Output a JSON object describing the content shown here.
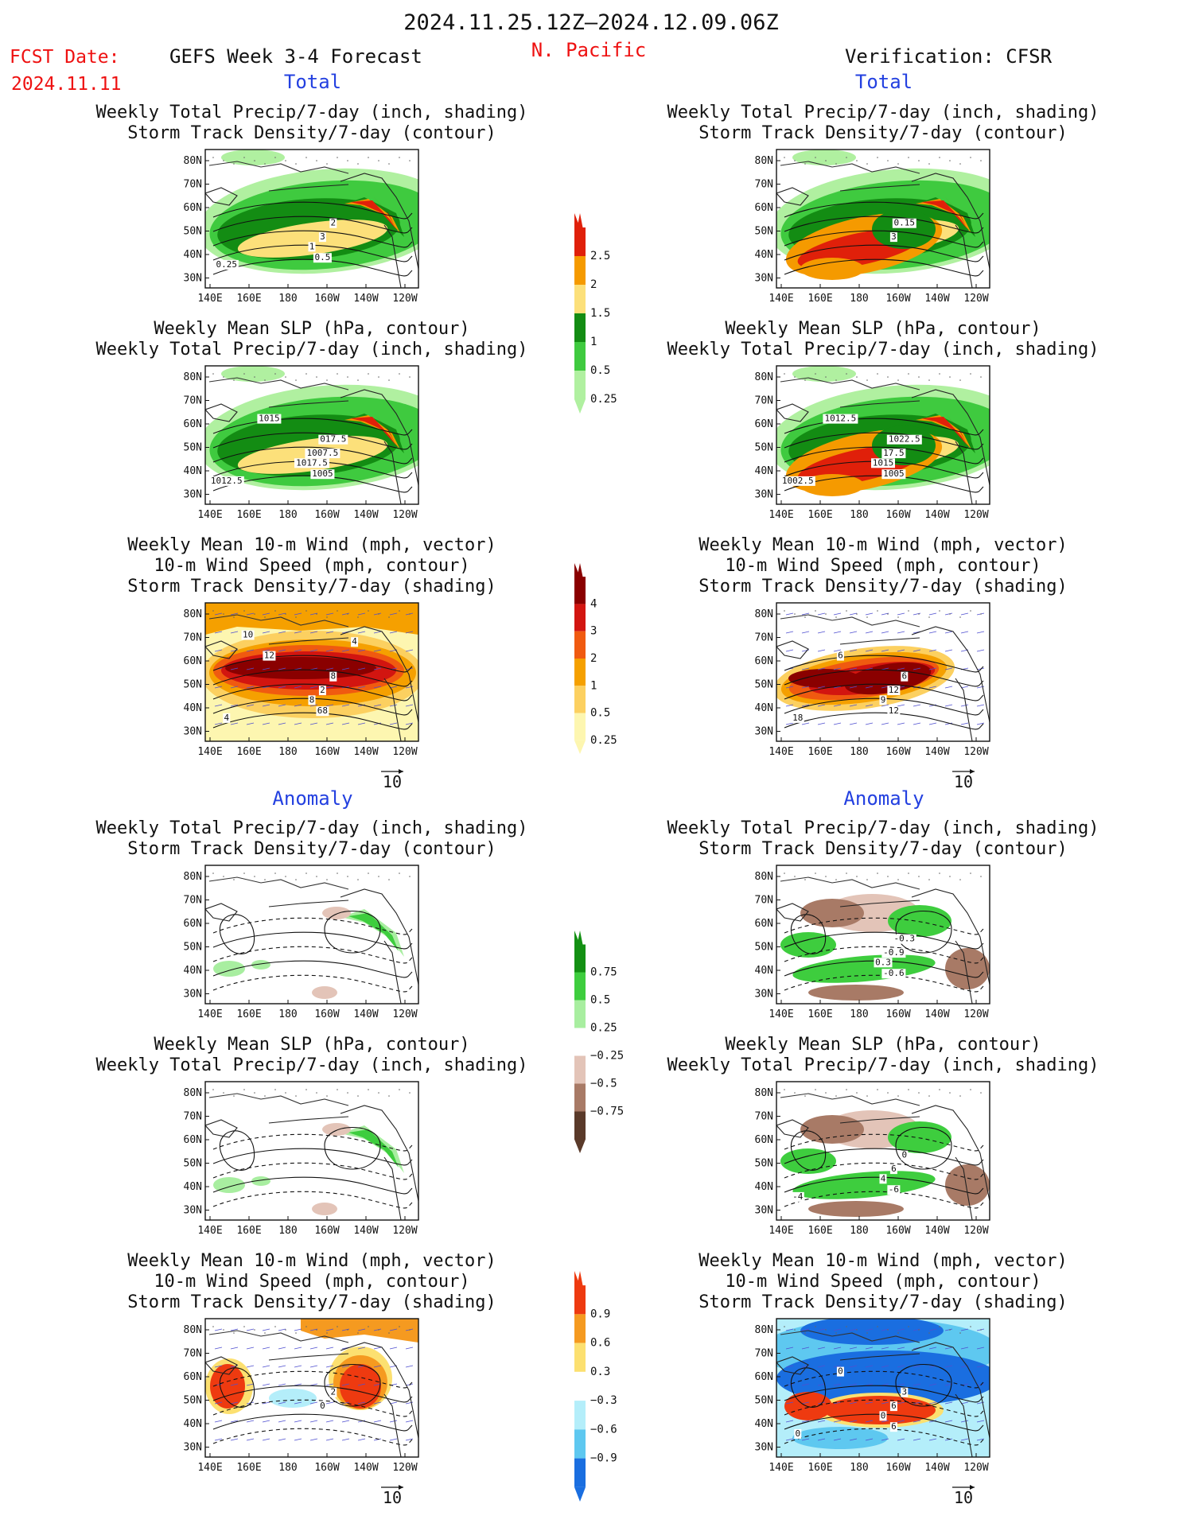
{
  "header": {
    "date_range": "2024.11.25.12Z–2024.12.09.06Z",
    "region": "N. Pacific",
    "fcst_label": "FCST Date:",
    "fcst_date": "2024.11.11",
    "forecast_title": "GEFS Week 3-4 Forecast",
    "verification": "Verification: CFSR"
  },
  "section_labels": {
    "total": "Total",
    "anomaly": "Anomaly"
  },
  "titles": {
    "precip_storm": [
      "Weekly Total Precip/7-day (inch, shading)",
      "Storm Track Density/7-day (contour)"
    ],
    "slp_precip": [
      "Weekly Mean SLP (hPa, contour)",
      "Weekly Total Precip/7-day (inch, shading)"
    ],
    "wind_storm": [
      "Weekly Mean 10-m Wind (mph, vector)",
      "10-m Wind Speed (mph, contour)",
      "Storm Track Density/7-day (shading)"
    ]
  },
  "axes": {
    "lat_labels": [
      "80N",
      "70N",
      "60N",
      "50N",
      "40N",
      "30N"
    ],
    "lon_labels": [
      "140E",
      "160E",
      "180",
      "160W",
      "140W",
      "120W"
    ]
  },
  "vector_ref": "10",
  "colorbars": {
    "precip_total": {
      "labels": [
        "2.5",
        "2",
        "1.5",
        "1",
        "0.5",
        "0.25"
      ],
      "colors": [
        "#e0200a",
        "#f59a00",
        "#fce07a",
        "#138c13",
        "#3fca3f",
        "#b0f0a0"
      ]
    },
    "storm_total": {
      "labels": [
        "4",
        "3",
        "2",
        "1",
        "0.5",
        "0.25"
      ],
      "colors": [
        "#8a0000",
        "#d21510",
        "#f05a10",
        "#f5a000",
        "#fcd060",
        "#fdf6b0"
      ]
    },
    "precip_anom": {
      "labels": [
        "0.75",
        "0.5",
        "0.25",
        "−0.25",
        "−0.5",
        "−0.75"
      ],
      "colors": [
        "#139013",
        "#3ecd3e",
        "#a8eea0",
        "#ffffff",
        "#e3c4b8",
        "#a87a66",
        "#5a3a2a"
      ]
    },
    "storm_anom": {
      "labels": [
        "0.9",
        "0.6",
        "0.3",
        "−0.3",
        "−0.6",
        "−0.9"
      ],
      "colors": [
        "#ee3a10",
        "#f59a20",
        "#fce070",
        "#ffffff",
        "#b4eefa",
        "#5ec8f0",
        "#1a6ee0"
      ]
    }
  },
  "panels": {
    "p1": [
      "3",
      "2",
      "1",
      "0.5",
      "0.25"
    ],
    "p2": [
      "1007.5",
      "017.5",
      "1017.5",
      "1005",
      "1012.5",
      "1015"
    ],
    "p3": [
      "2",
      "8",
      "8",
      "68",
      "4",
      "12",
      "10",
      "4"
    ],
    "p4": [
      "3",
      "0.15"
    ],
    "p5": [
      "17.5",
      "1022.5",
      "1015",
      "1005",
      "1002.5",
      "1012.5"
    ],
    "p6": [
      "12",
      "6",
      "9",
      "12",
      "18",
      "6"
    ],
    "p7": [],
    "p8": [
      "-0.9",
      "-0.3",
      "0.3",
      "-0.6"
    ],
    "p9": [],
    "p10": [
      "6",
      "0",
      "4",
      "-6",
      "-4"
    ],
    "p11": [
      "0",
      "2"
    ],
    "p12": [
      "6",
      "3",
      "0",
      "6",
      "0",
      "0"
    ]
  }
}
